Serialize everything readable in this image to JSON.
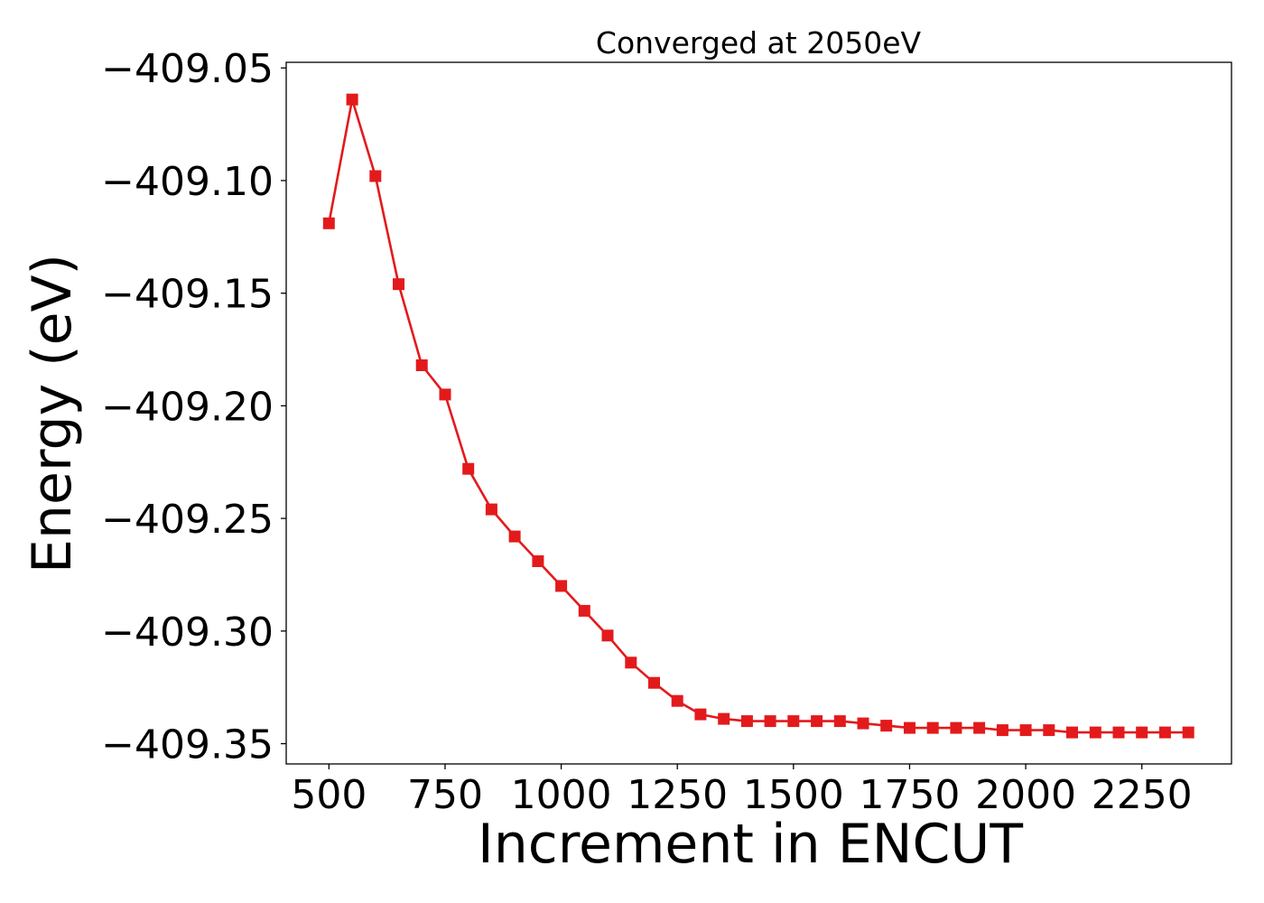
{
  "chart_data": {
    "type": "line",
    "title": "Converged at 2050eV",
    "xlabel": "Increment in ENCUT",
    "ylabel": "Energy (eV)",
    "xlim": [
      408,
      2443
    ],
    "ylim": [
      -409.359,
      -409.0475
    ],
    "x_ticks": [
      500,
      750,
      1000,
      1250,
      1500,
      1750,
      2000,
      2250
    ],
    "x_tick_labels": [
      "500",
      "750",
      "1000",
      "1250",
      "1500",
      "1750",
      "2000",
      "2250"
    ],
    "y_ticks": [
      -409.05,
      -409.1,
      -409.15,
      -409.2,
      -409.25,
      -409.3,
      -409.35
    ],
    "y_tick_labels": [
      "−409.05",
      "−409.10",
      "−409.15",
      "−409.20",
      "−409.25",
      "−409.30",
      "−409.35"
    ],
    "grid": false,
    "legend": "none",
    "marker": "square",
    "color": "#e31a1c",
    "x": [
      500,
      550,
      600,
      650,
      700,
      750,
      800,
      850,
      900,
      950,
      1000,
      1050,
      1100,
      1150,
      1200,
      1250,
      1300,
      1350,
      1400,
      1450,
      1500,
      1550,
      1600,
      1650,
      1700,
      1750,
      1800,
      1850,
      1900,
      1950,
      2000,
      2050,
      2100,
      2150,
      2200,
      2250,
      2300,
      2350
    ],
    "y": [
      -409.119,
      -409.064,
      -409.098,
      -409.146,
      -409.182,
      -409.195,
      -409.228,
      -409.246,
      -409.258,
      -409.269,
      -409.28,
      -409.291,
      -409.302,
      -409.314,
      -409.323,
      -409.331,
      -409.337,
      -409.339,
      -409.34,
      -409.34,
      -409.34,
      -409.34,
      -409.34,
      -409.341,
      -409.342,
      -409.343,
      -409.343,
      -409.343,
      -409.343,
      -409.344,
      -409.344,
      -409.344,
      -409.345,
      -409.345,
      -409.345,
      -409.345,
      -409.345,
      -409.345
    ]
  }
}
